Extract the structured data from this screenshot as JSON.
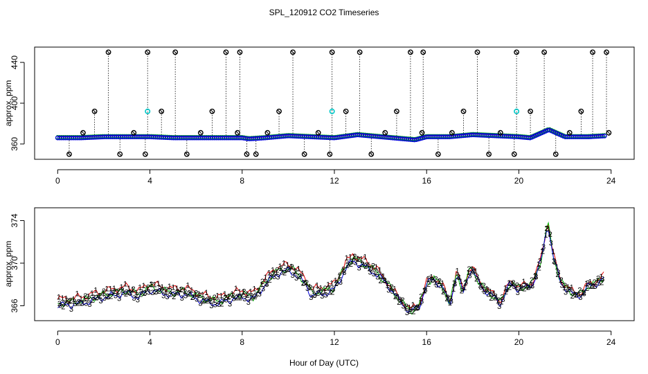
{
  "figure": {
    "title": "SPL_120912  CO2 Timeseries",
    "xlabel": "Hour of Day (UTC)"
  },
  "colors": {
    "series1": "#e00000",
    "series2": "#00b000",
    "series3": "#0000e0",
    "mean_line": "#000000",
    "spike_marker": "#000000",
    "cyan_marker": "#00c8c8"
  },
  "chart_data": [
    {
      "type": "scatter",
      "panel": "top",
      "ylabel": "approx. ppm",
      "xlim": [
        -1,
        25
      ],
      "ylim": [
        345,
        455
      ],
      "xticks": [
        0,
        4,
        8,
        12,
        16,
        20,
        24
      ],
      "yticks": [
        360,
        400,
        440
      ],
      "baseline_series": {
        "x": [
          0,
          1,
          2,
          3,
          4,
          5,
          6,
          7,
          8,
          8.3,
          9,
          10,
          11,
          12,
          13,
          14,
          15,
          15.5,
          16,
          17,
          18,
          19,
          20,
          20.5,
          21,
          21.3,
          22,
          23,
          23.8
        ],
        "y": [
          366,
          366,
          367,
          367,
          367,
          366,
          366,
          366,
          366,
          365,
          366,
          368,
          367,
          366,
          369,
          367,
          365,
          364,
          367,
          367,
          369,
          368,
          367,
          366,
          371,
          374,
          367,
          367,
          368
        ]
      },
      "spike_markers": {
        "symbol": "⊗",
        "x": [
          0.5,
          1.1,
          1.6,
          2.2,
          2.7,
          3.3,
          3.8,
          3.9,
          4.5,
          5.1,
          5.6,
          6.2,
          6.7,
          7.3,
          7.8,
          7.9,
          8.2,
          8.6,
          9.1,
          9.6,
          10.2,
          10.7,
          11.3,
          11.8,
          11.9,
          12.5,
          13.1,
          13.6,
          14.2,
          14.7,
          15.3,
          15.8,
          15.85,
          16.5,
          17.1,
          17.6,
          18.2,
          18.7,
          19.2,
          19.8,
          19.9,
          20.5,
          21.1,
          21.6,
          22.2,
          22.7,
          23.2,
          23.8,
          23.9
        ],
        "y": [
          350,
          371,
          392,
          450,
          350,
          371,
          350,
          450,
          392,
          450,
          350,
          371,
          392,
          450,
          371,
          450,
          350,
          350,
          371,
          392,
          450,
          350,
          371,
          350,
          450,
          392,
          450,
          350,
          371,
          392,
          450,
          371,
          450,
          350,
          371,
          392,
          450,
          350,
          371,
          350,
          450,
          392,
          450,
          350,
          371,
          392,
          450,
          450,
          371
        ]
      },
      "cyan_markers": {
        "x": [
          3.9,
          11.9,
          19.9
        ],
        "y": [
          392,
          392,
          392
        ]
      }
    },
    {
      "type": "line",
      "panel": "bottom",
      "ylabel": "approx. ppm",
      "xlim": [
        -1,
        25
      ],
      "ylim": [
        364.6,
        375.2
      ],
      "xticks": [
        0,
        4,
        8,
        12,
        16,
        20,
        24
      ],
      "yticks": [
        366,
        370,
        374
      ],
      "series": [
        {
          "name": "1",
          "marker": "1",
          "offset": 0.6
        },
        {
          "name": "2",
          "marker": "2",
          "offset": 0.25
        },
        {
          "name": "3",
          "marker": "3",
          "offset": 0.0
        }
      ],
      "base_curve": {
        "x": [
          0,
          0.5,
          1,
          1.5,
          2,
          2.5,
          3,
          3.5,
          4,
          4.5,
          5,
          5.5,
          6,
          6.5,
          7,
          7.5,
          8,
          8.5,
          9,
          9.5,
          10,
          10.3,
          10.8,
          11,
          11.5,
          12,
          12.5,
          12.8,
          13.2,
          13.8,
          14.3,
          14.8,
          15.3,
          15.7,
          16,
          16.3,
          16.7,
          17,
          17.3,
          17.6,
          17.8,
          18,
          18.2,
          18.5,
          18.8,
          19.2,
          19.6,
          20,
          20.3,
          20.6,
          21,
          21.25,
          21.5,
          21.8,
          22.1,
          22.4,
          22.7,
          23,
          23.3,
          23.7
        ],
        "y": [
          366.0,
          366.1,
          366.2,
          366.5,
          366.8,
          367.0,
          367.2,
          366.8,
          367.5,
          367.2,
          367.0,
          367.1,
          366.7,
          366.3,
          366.2,
          366.6,
          366.8,
          366.6,
          368.0,
          369.0,
          369.3,
          369.0,
          367.8,
          367.0,
          367.1,
          367.5,
          369.5,
          370.2,
          369.8,
          369.0,
          368.0,
          366.5,
          365.4,
          366.0,
          368.0,
          368.5,
          367.7,
          366.0,
          369.0,
          367.2,
          369.0,
          369.4,
          368.3,
          367.5,
          367.0,
          366.2,
          368.0,
          367.6,
          367.7,
          368.0,
          370.5,
          373.8,
          370.5,
          368.2,
          367.5,
          367.0,
          367.0,
          367.8,
          368.0,
          368.6
        ]
      }
    }
  ]
}
